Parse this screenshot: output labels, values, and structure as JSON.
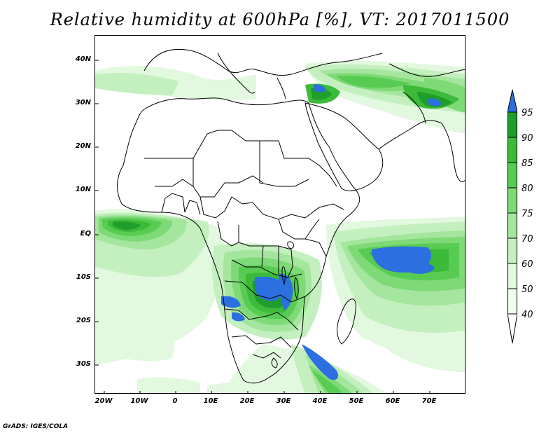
{
  "title": "Relative humidity at 600hPa [%], VT: 2017011500",
  "credit": "GrADS: IGES/COLA",
  "lat_labels": [
    "40N",
    "30N",
    "20N",
    "10N",
    "EQ",
    "10S",
    "20S",
    "30S"
  ],
  "lon_labels": [
    "20W",
    "10W",
    "0",
    "10E",
    "20E",
    "30E",
    "40E",
    "50E",
    "60E",
    "70E"
  ],
  "colorbar": {
    "labels": [
      "95",
      "90",
      "85",
      "80",
      "75",
      "70",
      "60",
      "50",
      "40"
    ],
    "colors": [
      "#2b6fe0",
      "#1f9e2c",
      "#3cba3a",
      "#58cc52",
      "#7ed977",
      "#a4e69d",
      "#c4efbf",
      "#e2f8df",
      "#ffffff"
    ],
    "over_color": "#2b6fe0"
  },
  "chart_data": {
    "type": "heatmap",
    "title": "Relative humidity at 600hPa [%], VT: 2017011500",
    "variable": "Relative humidity",
    "level": "600hPa",
    "units": "%",
    "valid_time": "2017011500",
    "lon_range": [
      "20W",
      "80E"
    ],
    "lat_range": [
      "37S",
      "45N"
    ],
    "contour_levels": [
      40,
      50,
      60,
      70,
      75,
      80,
      85,
      90,
      95
    ],
    "background": "Africa, Arabia and western Indian Ocean political boundaries"
  }
}
